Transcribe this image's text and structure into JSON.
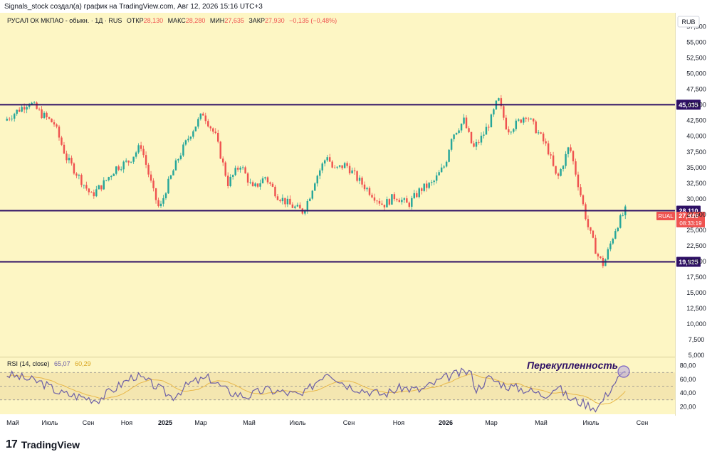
{
  "header": {
    "attribution": "Signals_stock создал(а) график на TradingView.com, Авг 12, 2026 15:16 UTC+3"
  },
  "legend": {
    "symbol": "РУСАЛ ОК МКПАО - обыкн. · 1Д · RUS",
    "open_label": "ОТКР",
    "open": "28,130",
    "high_label": "МАКС",
    "high": "28,280",
    "low_label": "МИН",
    "low": "27,635",
    "close_label": "ЗАКР",
    "close": "27,930",
    "change": "−0,135 (−0,48%)"
  },
  "currency": "RUB",
  "brand": "TradingView",
  "colors": {
    "background": "#fdf6c4",
    "up": "#26a69a",
    "down": "#ef5350",
    "level_line": "#2e1065",
    "rsi_line": "#6c5fa7",
    "rsi_ma": "#e8b84a",
    "rsi_band": "#f0e0a8",
    "price_badge": "#ef5350"
  },
  "chart_data": [
    {
      "type": "candlestick",
      "title": "",
      "yaxis_ticks": [
        "57,500",
        "55,000",
        "52,500",
        "50,000",
        "47,500",
        "45,000",
        "42,500",
        "40,000",
        "37,500",
        "35,000",
        "32,500",
        "30,000",
        "27,500",
        "25,000",
        "22,500",
        "20,000",
        "17,500",
        "15,000",
        "12,500",
        "10,000",
        "7,500",
        "5,000"
      ],
      "ylim": [
        5000,
        59500
      ],
      "xaxis_ticks": [
        "Май",
        "Июль",
        "Сен",
        "Ноя",
        "2025",
        "Мар",
        "Май",
        "Июль",
        "Сен",
        "Ноя",
        "2026",
        "Мар",
        "Май",
        "Июль",
        "Сен"
      ],
      "trend_path": [
        [
          0,
          42500
        ],
        [
          0.02,
          44000
        ],
        [
          0.04,
          45500
        ],
        [
          0.06,
          43500
        ],
        [
          0.08,
          42000
        ],
        [
          0.1,
          36500
        ],
        [
          0.12,
          33500
        ],
        [
          0.14,
          30500
        ],
        [
          0.16,
          32500
        ],
        [
          0.18,
          35000
        ],
        [
          0.2,
          36000
        ],
        [
          0.22,
          38500
        ],
        [
          0.24,
          31000
        ],
        [
          0.25,
          28200
        ],
        [
          0.26,
          31500
        ],
        [
          0.28,
          36500
        ],
        [
          0.3,
          40500
        ],
        [
          0.32,
          43700
        ],
        [
          0.34,
          40000
        ],
        [
          0.36,
          32500
        ],
        [
          0.38,
          35500
        ],
        [
          0.4,
          31500
        ],
        [
          0.42,
          33500
        ],
        [
          0.44,
          30500
        ],
        [
          0.46,
          29000
        ],
        [
          0.48,
          28000
        ],
        [
          0.49,
          30000
        ],
        [
          0.5,
          33000
        ],
        [
          0.52,
          37000
        ],
        [
          0.53,
          34500
        ],
        [
          0.55,
          35500
        ],
        [
          0.57,
          33000
        ],
        [
          0.59,
          31000
        ],
        [
          0.61,
          29000
        ],
        [
          0.63,
          30500
        ],
        [
          0.65,
          29000
        ],
        [
          0.67,
          31500
        ],
        [
          0.69,
          32500
        ],
        [
          0.71,
          35500
        ],
        [
          0.72,
          40000
        ],
        [
          0.74,
          42500
        ],
        [
          0.755,
          38000
        ],
        [
          0.77,
          40000
        ],
        [
          0.785,
          43000
        ],
        [
          0.795,
          46000
        ],
        [
          0.81,
          41000
        ],
        [
          0.825,
          42000
        ],
        [
          0.84,
          43500
        ],
        [
          0.86,
          40500
        ],
        [
          0.875,
          38000
        ],
        [
          0.89,
          33000
        ],
        [
          0.91,
          38500
        ],
        [
          0.925,
          32000
        ],
        [
          0.94,
          25500
        ],
        [
          0.955,
          21000
        ],
        [
          0.965,
          19400
        ],
        [
          0.975,
          22500
        ],
        [
          0.985,
          25500
        ],
        [
          1.0,
          28100
        ]
      ],
      "horizontal_levels": [
        {
          "label": "45,035",
          "value": 45035
        },
        {
          "label": "28,110",
          "value": 28110
        },
        {
          "label": "19,925",
          "value": 19925
        }
      ],
      "last_price": {
        "ticker": "RUAL",
        "price": "27,930",
        "countdown": "08:33:19",
        "value": 27930
      }
    },
    {
      "type": "line",
      "title": "RSI (14, close)",
      "legend_values": [
        "65,07",
        "60,29"
      ],
      "yaxis_ticks": [
        "80,00",
        "60,00",
        "40,00",
        "20,00"
      ],
      "ylim": [
        10,
        90
      ],
      "band": [
        30,
        70
      ],
      "midline": 50,
      "annotation": "Перекупленность",
      "rsi_path": [
        [
          0,
          68
        ],
        [
          0.03,
          62
        ],
        [
          0.06,
          55
        ],
        [
          0.09,
          40
        ],
        [
          0.12,
          35
        ],
        [
          0.15,
          30
        ],
        [
          0.18,
          48
        ],
        [
          0.21,
          66
        ],
        [
          0.24,
          52
        ],
        [
          0.27,
          34
        ],
        [
          0.3,
          55
        ],
        [
          0.33,
          62
        ],
        [
          0.36,
          42
        ],
        [
          0.39,
          35
        ],
        [
          0.42,
          45
        ],
        [
          0.45,
          41
        ],
        [
          0.48,
          36
        ],
        [
          0.5,
          55
        ],
        [
          0.52,
          72
        ],
        [
          0.55,
          52
        ],
        [
          0.58,
          44
        ],
        [
          0.61,
          38
        ],
        [
          0.64,
          48
        ],
        [
          0.67,
          44
        ],
        [
          0.7,
          58
        ],
        [
          0.72,
          66
        ],
        [
          0.75,
          72
        ],
        [
          0.76,
          45
        ],
        [
          0.78,
          62
        ],
        [
          0.81,
          50
        ],
        [
          0.84,
          45
        ],
        [
          0.87,
          37
        ],
        [
          0.89,
          50
        ],
        [
          0.91,
          32
        ],
        [
          0.93,
          26
        ],
        [
          0.955,
          18
        ],
        [
          0.97,
          38
        ],
        [
          0.985,
          58
        ],
        [
          1.0,
          70
        ]
      ]
    }
  ]
}
